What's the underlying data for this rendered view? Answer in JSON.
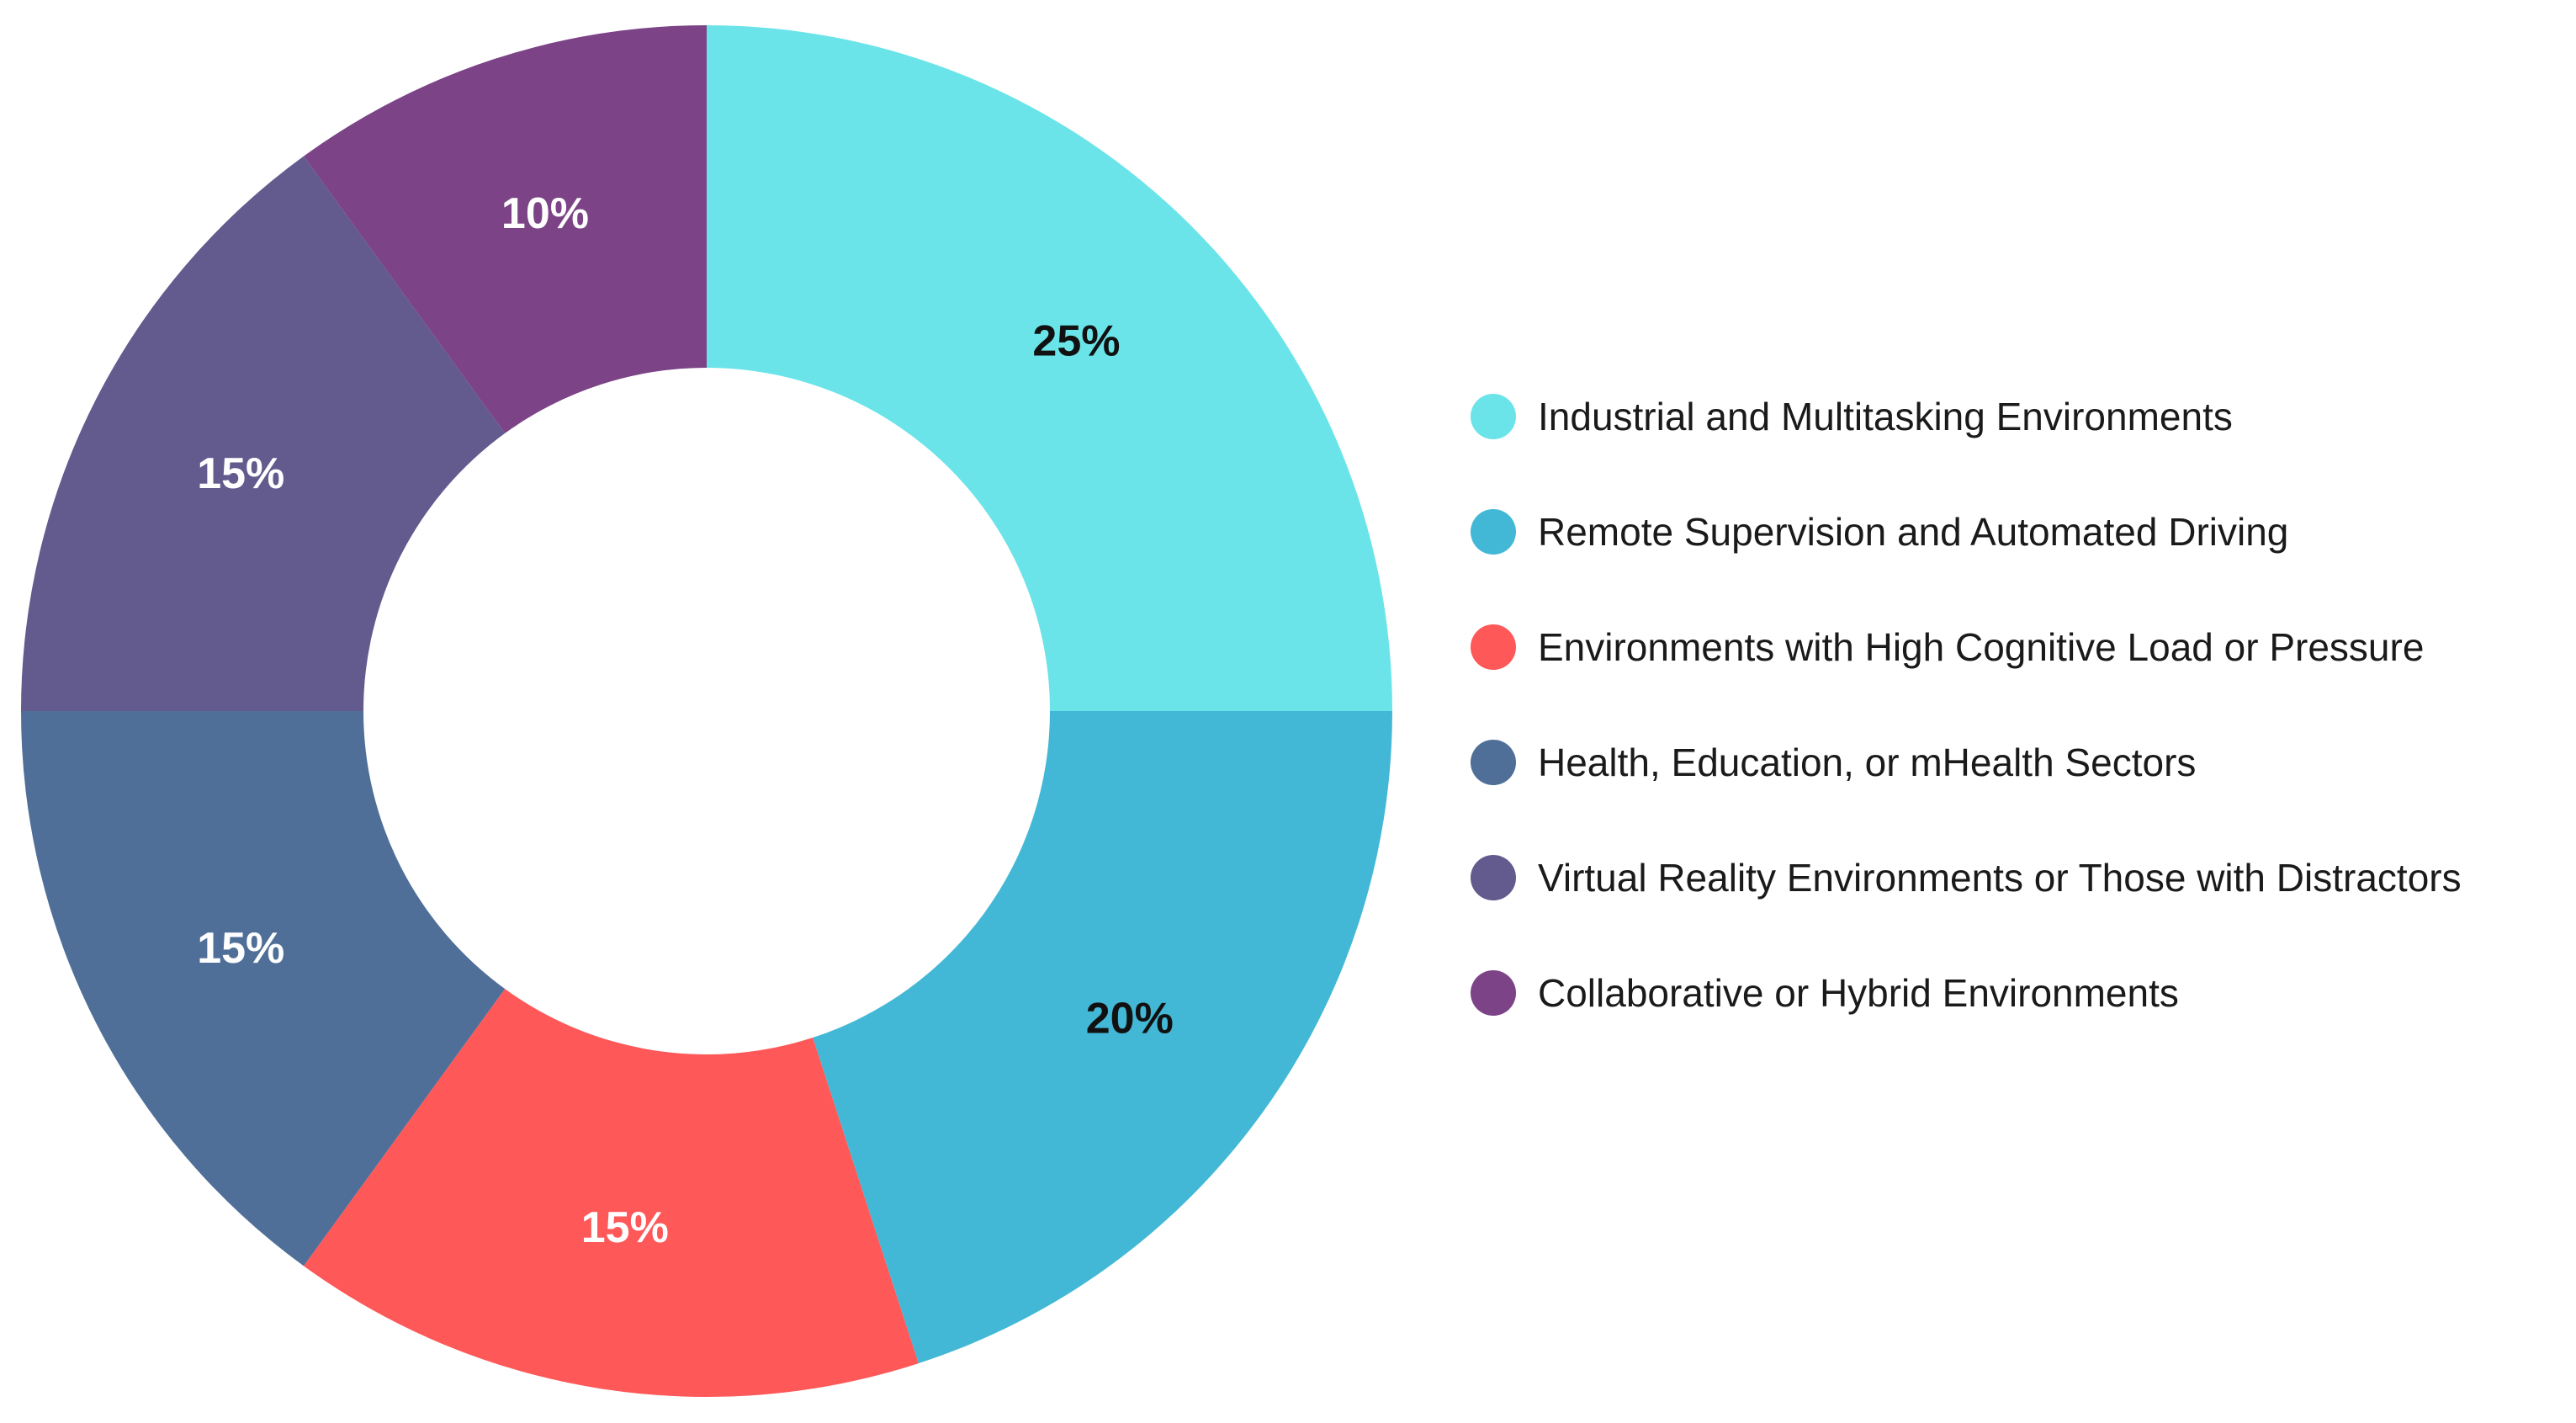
{
  "chart_data": {
    "type": "pie",
    "variant": "donut",
    "title": "",
    "legend_position": "right",
    "slices": [
      {
        "label": "Industrial and Multitasking Environments",
        "value": 25,
        "value_label": "25%",
        "color": "#6be4e9",
        "label_color": "#111111"
      },
      {
        "label": "Remote Supervision and Automated Driving",
        "value": 20,
        "value_label": "20%",
        "color": "#43b8d6",
        "label_color": "#111111"
      },
      {
        "label": "Environments with High Cognitive Load or Pressure",
        "value": 15,
        "value_label": "15%",
        "color": "#fe5858",
        "label_color": "#ffffff"
      },
      {
        "label": "Health, Education, or mHealth Sectors",
        "value": 15,
        "value_label": "15%",
        "color": "#4f6f99",
        "label_color": "#ffffff"
      },
      {
        "label": "Virtual Reality Environments or Those with Distractors",
        "value": 15,
        "value_label": "15%",
        "color": "#635a8e",
        "label_color": "#ffffff"
      },
      {
        "label": "Collaborative or Hybrid Environments",
        "value": 10,
        "value_label": "10%",
        "color": "#7c4487",
        "label_color": "#ffffff"
      }
    ]
  }
}
